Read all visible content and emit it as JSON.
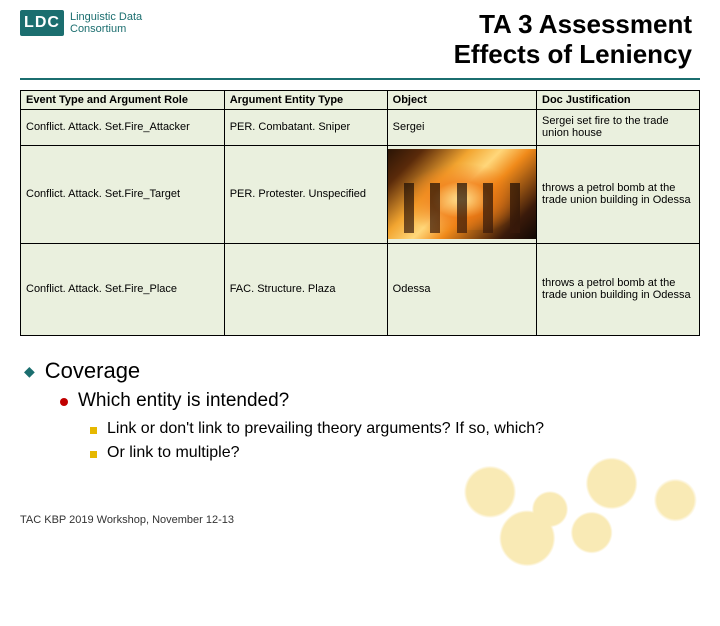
{
  "logo": {
    "mark": "LDC",
    "line1": "Linguistic Data",
    "line2": "Consortium"
  },
  "title": {
    "line1": "TA 3 Assessment",
    "line2": "Effects of Leniency"
  },
  "table": {
    "headers": {
      "c1": "Event Type and Argument Role",
      "c2": "Argument Entity Type",
      "c3": "Object",
      "c4": "Doc Justification"
    },
    "rows": [
      {
        "c1": "Conflict. Attack. Set.Fire_Attacker",
        "c2": "PER. Combatant. Sniper",
        "c3": "Sergei",
        "c4": "Sergei set fire to the trade union house"
      },
      {
        "c1": "Conflict. Attack. Set.Fire_Target",
        "c2": "PER. Protester. Unspecified",
        "c3_is_image": true,
        "c4": "throws a petrol bomb at the trade union building in Odessa"
      },
      {
        "c1": "Conflict. Attack. Set.Fire_Place",
        "c2": "FAC. Structure. Plaza",
        "c3": "Odessa",
        "c4": "throws a petrol bomb at the trade union building in Odessa"
      }
    ]
  },
  "bullets": {
    "l1": "Coverage",
    "l2": "Which entity is intended?",
    "l3a": "Link or don't link to prevailing theory arguments? If so, which?",
    "l3b": "Or link to multiple?"
  },
  "footer": "TAC KBP 2019 Workshop, November 12-13",
  "colors": {
    "accent": "#1b6e6f",
    "table_bg": "#eaf0de",
    "bullet2": "#c00000",
    "bullet3": "#e6b800"
  }
}
